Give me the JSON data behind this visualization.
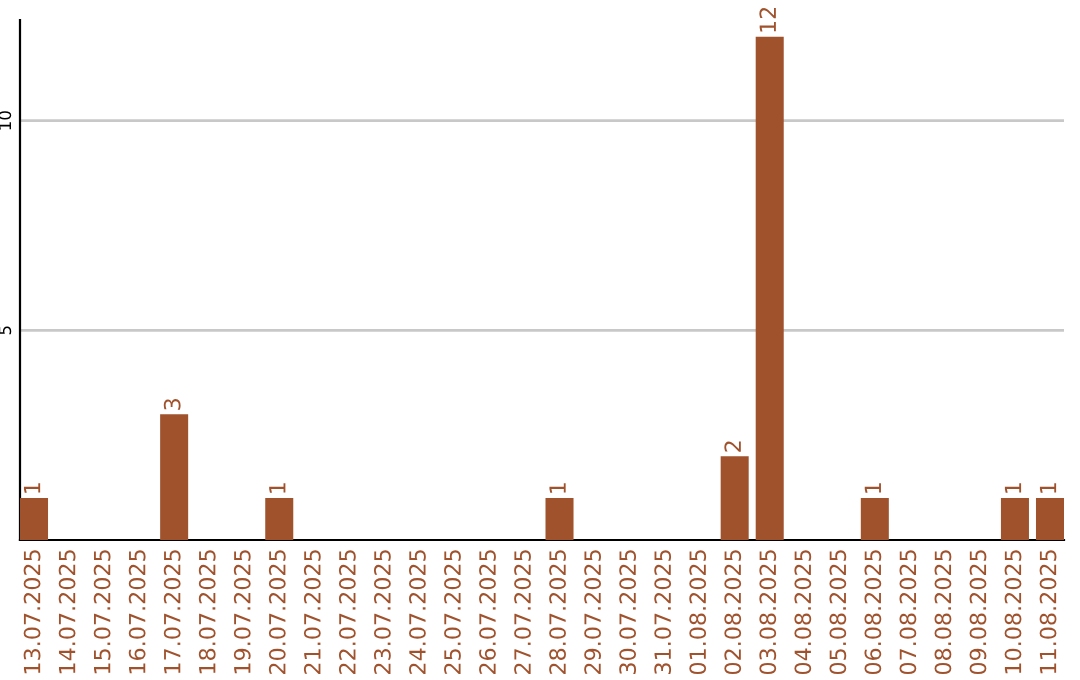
{
  "chart_data": {
    "type": "bar",
    "categories": [
      "13.07.2025",
      "14.07.2025",
      "15.07.2025",
      "16.07.2025",
      "17.07.2025",
      "18.07.2025",
      "19.07.2025",
      "20.07.2025",
      "21.07.2025",
      "22.07.2025",
      "23.07.2025",
      "24.07.2025",
      "25.07.2025",
      "26.07.2025",
      "27.07.2025",
      "28.07.2025",
      "29.07.2025",
      "30.07.2025",
      "31.07.2025",
      "01.08.2025",
      "02.08.2025",
      "03.08.2025",
      "04.08.2025",
      "05.08.2025",
      "06.08.2025",
      "07.08.2025",
      "08.08.2025",
      "09.08.2025",
      "10.08.2025",
      "11.08.2025"
    ],
    "values": [
      1,
      0,
      0,
      0,
      3,
      0,
      0,
      1,
      0,
      0,
      0,
      0,
      0,
      0,
      0,
      1,
      0,
      0,
      0,
      0,
      2,
      12,
      0,
      0,
      1,
      0,
      0,
      0,
      1,
      1
    ],
    "value_labels": [
      "1",
      null,
      null,
      null,
      "3",
      null,
      null,
      "1",
      null,
      null,
      null,
      null,
      null,
      null,
      null,
      "1",
      null,
      null,
      null,
      null,
      "2",
      "12",
      null,
      null,
      "1",
      null,
      null,
      null,
      "1",
      "1"
    ],
    "color": "#a0522d",
    "ylim": [
      0,
      12.4
    ],
    "yticks": [
      5,
      10
    ],
    "grid": "y"
  }
}
